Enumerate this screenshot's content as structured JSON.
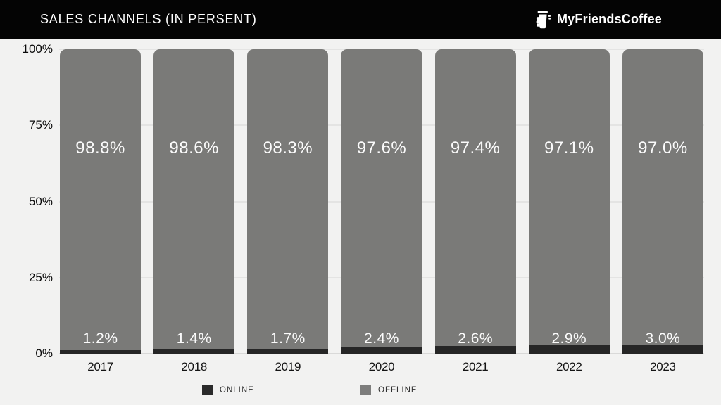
{
  "header": {
    "title": "SALES CHANNELS (IN PERSENT)",
    "brand": "MyFriendsCoffee",
    "logo_icon": "coffee-cup-icon",
    "bg_color": "#040404",
    "text_color": "#ffffff"
  },
  "chart_data": {
    "type": "bar",
    "stacked": true,
    "orientation": "vertical",
    "title": "SALES CHANNELS (IN PERSENT)",
    "categories": [
      "2017",
      "2018",
      "2019",
      "2020",
      "2021",
      "2022",
      "2023"
    ],
    "series": [
      {
        "name": "ONLINE",
        "color": "#262626",
        "values": [
          1.2,
          1.4,
          1.7,
          2.4,
          2.6,
          2.9,
          3.0
        ],
        "labels": [
          "1.2%",
          "1.4%",
          "1.7%",
          "2.4%",
          "2.6%",
          "2.9%",
          "3.0%"
        ]
      },
      {
        "name": "OFFLINE",
        "color": "#7a7a78",
        "values": [
          98.8,
          98.6,
          98.3,
          97.6,
          97.4,
          97.1,
          97.0
        ],
        "labels": [
          "98.8%",
          "98.6%",
          "98.3%",
          "97.6%",
          "97.4%",
          "97.1%",
          "97.0%"
        ]
      }
    ],
    "ylim": [
      0,
      100
    ],
    "yticks": [
      {
        "value": 0,
        "label": "0%"
      },
      {
        "value": 25,
        "label": "25%"
      },
      {
        "value": 50,
        "label": "50%"
      },
      {
        "value": 75,
        "label": "75%"
      },
      {
        "value": 100,
        "label": "100%"
      }
    ],
    "grid": true,
    "legend_position": "bottom",
    "value_label_color": "#ffffff"
  },
  "legend": {
    "items": [
      {
        "label": "ONLINE",
        "color": "#2b2b2b"
      },
      {
        "label": "OFFLINE",
        "color": "#7d7d7c"
      }
    ]
  },
  "colors": {
    "background": "#f2f2f1",
    "gridline": "#e4e4e3",
    "baseline": "#d9d9d8",
    "axis_text": "#0a0a0a"
  }
}
